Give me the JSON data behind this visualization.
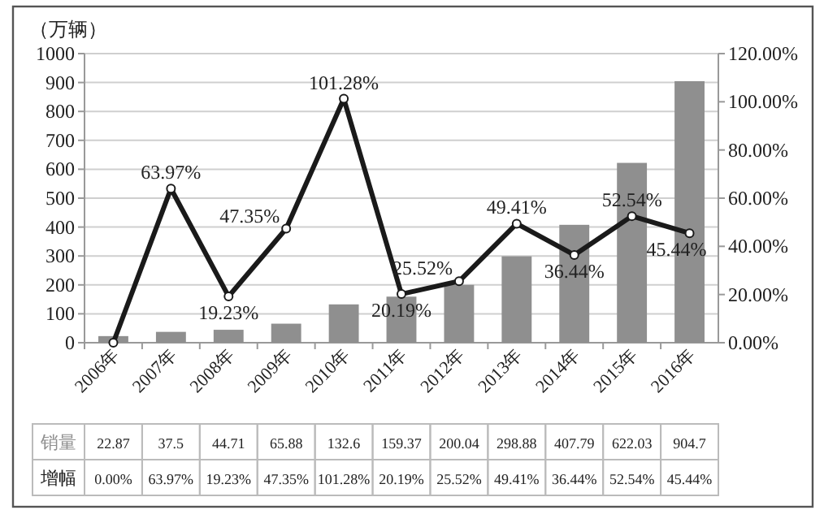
{
  "chart_data": {
    "type": "bar",
    "ylabel": "（万辆）",
    "categories": [
      "2006年",
      "2007年",
      "2008年",
      "2009年",
      "2010年",
      "2011年",
      "2012年",
      "2013年",
      "2014年",
      "2015年",
      "2016年"
    ],
    "series": [
      {
        "name": "销量",
        "color": "#8f8f8f",
        "values": [
          22.87,
          37.5,
          44.71,
          65.88,
          132.6,
          159.37,
          200.04,
          298.88,
          407.79,
          622.03,
          904.7
        ],
        "value_labels": [
          "22.87",
          "37.5",
          "44.71",
          "65.88",
          "132.6",
          "159.37",
          "200.04",
          "298.88",
          "407.79",
          "622.03",
          "904.7"
        ]
      },
      {
        "name": "增幅",
        "type": "line",
        "axis": "y2",
        "color": "#1a1a1a",
        "marker": "circle",
        "values": [
          0.0,
          63.97,
          19.23,
          47.35,
          101.28,
          20.19,
          25.52,
          49.41,
          36.44,
          52.54,
          45.44
        ],
        "value_labels": [
          "0.00%",
          "63.97%",
          "19.23%",
          "47.35%",
          "101.28%",
          "20.19%",
          "25.52%",
          "49.41%",
          "36.44%",
          "52.54%",
          "45.44%"
        ]
      }
    ],
    "ylim": [
      0,
      1000
    ],
    "yticks": [
      0,
      100,
      200,
      300,
      400,
      500,
      600,
      700,
      800,
      900,
      1000
    ],
    "y2lim": [
      0,
      120
    ],
    "y2ticks": [
      {
        "value": 0,
        "label": "0.00%"
      },
      {
        "value": 20,
        "label": "20.00%"
      },
      {
        "value": 40,
        "label": "40.00%"
      },
      {
        "value": 60,
        "label": "60.00%"
      },
      {
        "value": 80,
        "label": "80.00%"
      },
      {
        "value": 100,
        "label": "100.00%"
      },
      {
        "value": 120,
        "label": "120.00%"
      }
    ],
    "grid": "y",
    "legend": "bottom",
    "data_labels": true
  }
}
